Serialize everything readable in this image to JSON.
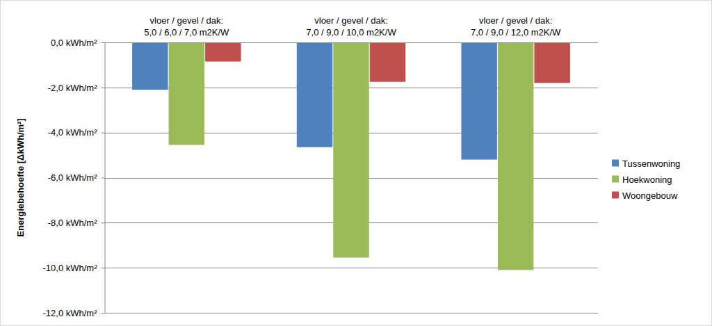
{
  "chart_data": {
    "type": "bar",
    "y_label": "Energiebehoefte [ΔkWh/m²]",
    "categories": [
      "vloer / gevel / dak:\n5,0 / 6,0 / 7,0 m2K/W",
      "vloer / gevel / dak:\n7,0 / 9,0 / 10,0 m2K/W",
      "vloer / gevel / dak:\n7,0 / 9,0 / 12,0 m2K/W"
    ],
    "series": [
      {
        "name": "Tussenwoning",
        "color": "#4f81bd",
        "values": [
          -2.1,
          -4.65,
          -5.2
        ]
      },
      {
        "name": "Hoekwoning",
        "color": "#9bbb59",
        "values": [
          -4.55,
          -9.55,
          -10.1
        ]
      },
      {
        "name": "Woongebouw",
        "color": "#c0504d",
        "values": [
          -0.85,
          -1.75,
          -1.8
        ]
      }
    ],
    "ylim": [
      -12,
      0
    ],
    "yticks": [
      {
        "value": -12,
        "label": "-12,0 kWh/m²"
      },
      {
        "value": -10,
        "label": "-10,0 kWh/m²"
      },
      {
        "value": -8,
        "label": "-8,0 kWh/m²"
      },
      {
        "value": -6,
        "label": "-6,0 kWh/m²"
      },
      {
        "value": -4,
        "label": "-4,0 kWh/m²"
      },
      {
        "value": -2,
        "label": "-2,0 kWh/m²"
      },
      {
        "value": 0,
        "label": "0,0 kWh/m²"
      }
    ],
    "grid": true,
    "legend": "right"
  }
}
